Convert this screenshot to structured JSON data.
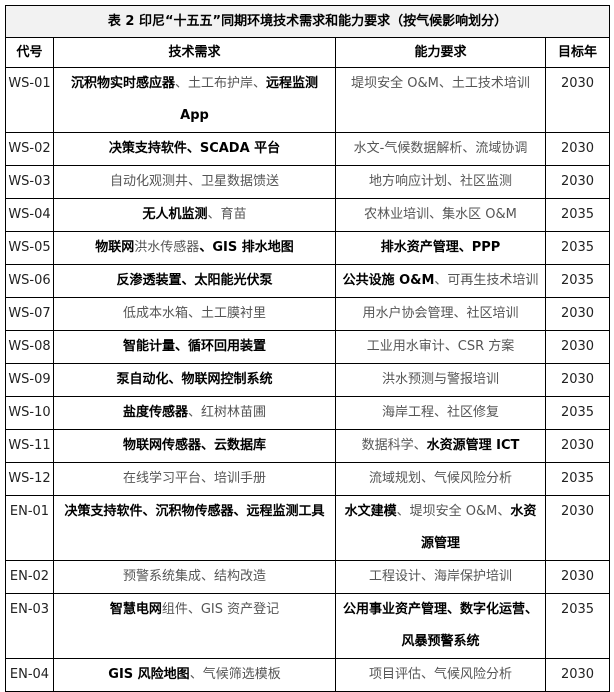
{
  "title": "表 2 印尼“十五五”同期环境技术需求和能力要求（按气候影响划分）",
  "headers": [
    "代号",
    "技术需求",
    "能力要求",
    "目标年"
  ],
  "rows": [
    {
      "code": "WS-01",
      "tech": [
        {
          "t": "沉积物实时感应器",
          "b": true
        },
        {
          "t": "、土工布护岸、",
          "b": false
        },
        {
          "t": "远程监测App",
          "b": true
        }
      ],
      "cap": [
        {
          "t": "堤坝安全 O&M、土工技术培训",
          "b": false
        }
      ],
      "year": "2030"
    },
    {
      "code": "WS-02",
      "tech": [
        {
          "t": "决策支持软件、SCADA 平台",
          "b": true
        }
      ],
      "cap": [
        {
          "t": "水文-气候数据解析、流域协调",
          "b": false
        }
      ],
      "year": "2030"
    },
    {
      "code": "WS-03",
      "tech": [
        {
          "t": "自动化观测井、卫星数据馈送",
          "b": false
        }
      ],
      "cap": [
        {
          "t": "地方响应计划、社区监测",
          "b": false
        }
      ],
      "year": "2030"
    },
    {
      "code": "WS-04",
      "tech": [
        {
          "t": "无人机监测",
          "b": true
        },
        {
          "t": "、育苗",
          "b": false
        }
      ],
      "cap": [
        {
          "t": "农林业培训、集水区 O&M",
          "b": false
        }
      ],
      "year": "2035"
    },
    {
      "code": "WS-05",
      "tech": [
        {
          "t": "物联网",
          "b": true
        },
        {
          "t": "洪水传感器",
          "b": false
        },
        {
          "t": "、GIS 排水地图",
          "b": true
        }
      ],
      "cap": [
        {
          "t": "排水资产管理、PPP",
          "b": true
        }
      ],
      "year": "2035"
    },
    {
      "code": "WS-06",
      "tech": [
        {
          "t": "反渗透装置、太阳能光伏泵",
          "b": true
        }
      ],
      "cap": [
        {
          "t": "公共设施 O&M",
          "b": true
        },
        {
          "t": "、可再生技术培训",
          "b": false
        }
      ],
      "year": "2035"
    },
    {
      "code": "WS-07",
      "tech": [
        {
          "t": "低成本水箱、土工膜衬里",
          "b": false
        }
      ],
      "cap": [
        {
          "t": "用水户协会管理、社区培训",
          "b": false
        }
      ],
      "year": "2030"
    },
    {
      "code": "WS-08",
      "tech": [
        {
          "t": "智能计量、循环回用装置",
          "b": true
        }
      ],
      "cap": [
        {
          "t": "工业用水审计、CSR 方案",
          "b": false
        }
      ],
      "year": "2030"
    },
    {
      "code": "WS-09",
      "tech": [
        {
          "t": "泵自动化、物联网控制系统",
          "b": true
        }
      ],
      "cap": [
        {
          "t": "洪水预测与警报培训",
          "b": false
        }
      ],
      "year": "2030"
    },
    {
      "code": "WS-10",
      "tech": [
        {
          "t": "盐度传感器",
          "b": true
        },
        {
          "t": "、红树林苗圃",
          "b": false
        }
      ],
      "cap": [
        {
          "t": "海岸工程、社区修复",
          "b": false
        }
      ],
      "year": "2035"
    },
    {
      "code": "WS-11",
      "tech": [
        {
          "t": "物联网传感器、云数据库",
          "b": true
        }
      ],
      "cap": [
        {
          "t": "数据科学、",
          "b": false
        },
        {
          "t": "水资源管理 ICT",
          "b": true
        }
      ],
      "year": "2030"
    },
    {
      "code": "WS-12",
      "tech": [
        {
          "t": "在线学习平台、培训手册",
          "b": false
        }
      ],
      "cap": [
        {
          "t": "流域规划、气候风险分析",
          "b": false
        }
      ],
      "year": "2035"
    },
    {
      "code": "EN-01",
      "tech": [
        {
          "t": "决策支持软件、沉积物传感器、远程监测工具",
          "b": true
        }
      ],
      "cap": [
        {
          "t": "水文建模",
          "b": true
        },
        {
          "t": "、堤坝安全 O&M、",
          "b": false
        },
        {
          "t": "水资源管理",
          "b": true
        }
      ],
      "year": "2030"
    },
    {
      "code": "EN-02",
      "tech": [
        {
          "t": "预警系统集成、结构改造",
          "b": false
        }
      ],
      "cap": [
        {
          "t": "工程设计、海岸保护培训",
          "b": false
        }
      ],
      "year": "2030"
    },
    {
      "code": "EN-03",
      "tech": [
        {
          "t": "智慧电网",
          "b": true
        },
        {
          "t": "组件、GIS 资产登记",
          "b": false
        }
      ],
      "cap": [
        {
          "t": "公用事业资产管理、数字化运营、风暴预警系统",
          "b": true
        }
      ],
      "year": "2035"
    },
    {
      "code": "EN-04",
      "tech": [
        {
          "t": "GIS 风险地图",
          "b": true
        },
        {
          "t": "、气候筛选模板",
          "b": false
        }
      ],
      "cap": [
        {
          "t": "项目评估、气候风险分析",
          "b": false
        }
      ],
      "year": "2030"
    }
  ]
}
